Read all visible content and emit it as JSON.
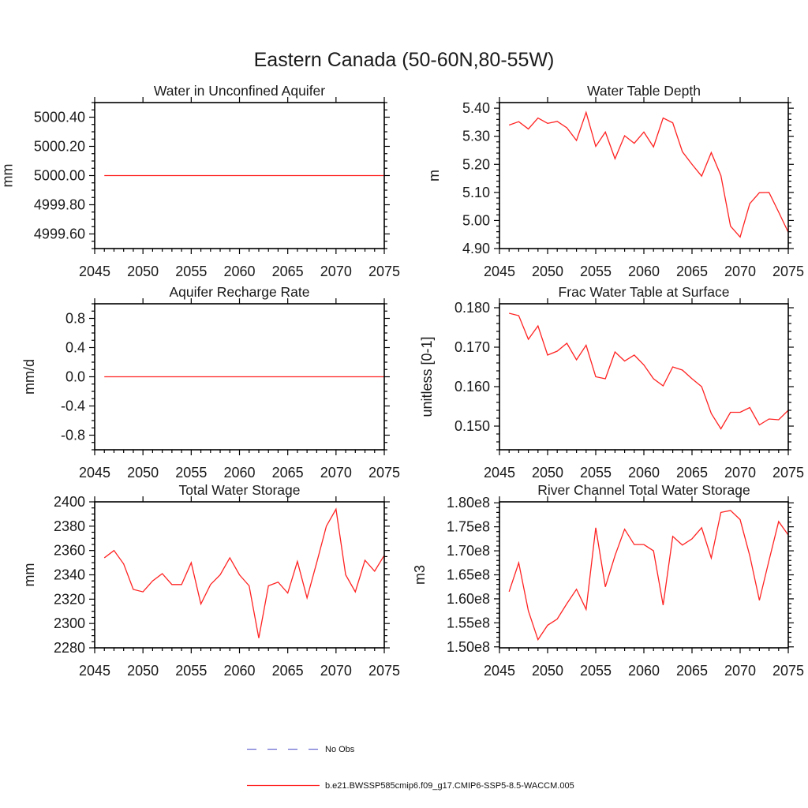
{
  "title": "Eastern Canada (50-60N,80-55W)",
  "colors": {
    "series_red": "#ff2222",
    "no_obs_blue": "#6e6ed2",
    "axis": "#000000",
    "background": "#ffffff"
  },
  "series_name": "b.e21.BWSSP585cmip6.f09_g17.CMIP6-SSP5-8.5-WACCM.005",
  "x_axis": {
    "lim": [
      2045,
      2075
    ],
    "tick_values": [
      2045,
      2050,
      2055,
      2060,
      2065,
      2070,
      2075
    ],
    "tick_labels": [
      "2045",
      "2050",
      "2055",
      "2060",
      "2065",
      "2070",
      "2075"
    ],
    "minor_step": 1
  },
  "legend": [
    {
      "label": "No Obs",
      "color": "#6e6ed2",
      "style": "dashed"
    },
    {
      "label": "b.e21.BWSSP585cmip6.f09_g17.CMIP6-SSP5-8.5-WACCM.005",
      "color": "#ff2222",
      "style": "solid"
    }
  ],
  "chart_data": [
    {
      "id": "water-in-unconfined-aquifer",
      "type": "line",
      "title": "Water in Unconfined Aquifer",
      "ylabel": "mm",
      "ylim": [
        4999.5,
        5000.5
      ],
      "yticks": {
        "values": [
          5000.4,
          5000.2,
          5000.0,
          4999.8,
          4999.6
        ],
        "labels": [
          "5000.40",
          "5000.20",
          "5000.00",
          "4999.80",
          "4999.60"
        ]
      },
      "y_minor_step": 0.05,
      "x_start": 2046,
      "series": [
        {
          "name": "b.e21.BWSSP585cmip6.f09_g17.CMIP6-SSP5-8.5-WACCM.005",
          "color": "#ff2222",
          "values": [
            5000,
            5000,
            5000,
            5000,
            5000,
            5000,
            5000,
            5000,
            5000,
            5000,
            5000,
            5000,
            5000,
            5000,
            5000,
            5000,
            5000,
            5000,
            5000,
            5000,
            5000,
            5000,
            5000,
            5000,
            5000,
            5000,
            5000,
            5000,
            5000,
            5000
          ]
        }
      ]
    },
    {
      "id": "water-table-depth",
      "type": "line",
      "title": "Water Table Depth",
      "ylabel": "m",
      "ylim": [
        4.9,
        5.42
      ],
      "yticks": {
        "values": [
          5.4,
          5.3,
          5.2,
          5.1,
          5.0,
          4.9
        ],
        "labels": [
          "5.40",
          "5.30",
          "5.20",
          "5.10",
          "5.00",
          "4.90"
        ]
      },
      "y_minor_step": 0.02,
      "x_start": 2046,
      "series": [
        {
          "name": "b.e21.BWSSP585cmip6.f09_g17.CMIP6-SSP5-8.5-WACCM.005",
          "color": "#ff2222",
          "values": [
            5.34,
            5.352,
            5.326,
            5.365,
            5.346,
            5.353,
            5.33,
            5.285,
            5.385,
            5.264,
            5.315,
            5.22,
            5.302,
            5.275,
            5.315,
            5.262,
            5.365,
            5.348,
            5.245,
            5.2,
            5.158,
            5.242,
            5.16,
            4.98,
            4.941,
            5.06,
            5.099,
            5.1,
            5.03,
            4.958
          ]
        }
      ]
    },
    {
      "id": "aquifer-recharge-rate",
      "type": "line",
      "title": "Aquifer Recharge Rate",
      "ylabel": "mm/d",
      "ylim": [
        -1.0,
        1.0
      ],
      "yticks": {
        "values": [
          0.8,
          0.4,
          0.0,
          -0.4,
          -0.8
        ],
        "labels": [
          "0.8",
          "0.4",
          "0.0",
          "-0.4",
          "-0.8"
        ]
      },
      "y_minor_step": 0.1,
      "x_start": 2046,
      "series": [
        {
          "name": "b.e21.BWSSP585cmip6.f09_g17.CMIP6-SSP5-8.5-WACCM.005",
          "color": "#ff2222",
          "values": [
            0,
            0,
            0,
            0,
            0,
            0,
            0,
            0,
            0,
            0,
            0,
            0,
            0,
            0,
            0,
            0,
            0,
            0,
            0,
            0,
            0,
            0,
            0,
            0,
            0,
            0,
            0,
            0,
            0,
            0
          ]
        }
      ]
    },
    {
      "id": "frac-water-table-at-surface",
      "type": "line",
      "title": "Frac Water Table at Surface",
      "ylabel": "unitless [0-1]",
      "ylim": [
        0.144,
        0.181
      ],
      "yticks": {
        "values": [
          0.18,
          0.17,
          0.16,
          0.15
        ],
        "labels": [
          "0.180",
          "0.170",
          "0.160",
          "0.150"
        ]
      },
      "y_minor_step": 0.002,
      "x_start": 2046,
      "series": [
        {
          "name": "b.e21.BWSSP585cmip6.f09_g17.CMIP6-SSP5-8.5-WACCM.005",
          "color": "#ff2222",
          "values": [
            0.1786,
            0.178,
            0.172,
            0.1754,
            0.168,
            0.169,
            0.171,
            0.1668,
            0.1705,
            0.1625,
            0.162,
            0.1688,
            0.1665,
            0.168,
            0.1655,
            0.162,
            0.1602,
            0.165,
            0.1642,
            0.162,
            0.16,
            0.1532,
            0.1493,
            0.1535,
            0.1535,
            0.1547,
            0.1503,
            0.1518,
            0.1516,
            0.154
          ]
        }
      ]
    },
    {
      "id": "total-water-storage",
      "type": "line",
      "title": "Total Water Storage",
      "ylabel": "mm",
      "ylim": [
        2280,
        2400
      ],
      "yticks": {
        "values": [
          2400,
          2380,
          2360,
          2340,
          2320,
          2300,
          2280
        ],
        "labels": [
          "2400",
          "2380",
          "2360",
          "2340",
          "2320",
          "2300",
          "2280"
        ]
      },
      "y_minor_step": 5,
      "x_start": 2046,
      "series": [
        {
          "name": "b.e21.BWSSP585cmip6.f09_g17.CMIP6-SSP5-8.5-WACCM.005",
          "color": "#ff2222",
          "values": [
            2354,
            2360,
            2349,
            2328,
            2326,
            2335,
            2341,
            2332,
            2332,
            2350,
            2316,
            2332,
            2340,
            2354,
            2340,
            2331,
            2288,
            2331,
            2334,
            2325,
            2351,
            2321,
            2350,
            2380,
            2394,
            2340,
            2326,
            2352,
            2343,
            2356
          ]
        }
      ]
    },
    {
      "id": "river-channel-total-water-storage",
      "type": "line",
      "title": "River Channel Total Water Storage",
      "ylabel": "m3",
      "ylim": [
        149800000.0,
        180200000.0
      ],
      "yticks": {
        "values": [
          180000000.0,
          175000000.0,
          170000000.0,
          165000000.0,
          160000000.0,
          155000000.0,
          150000000.0
        ],
        "labels": [
          "1.80e8",
          "1.75e8",
          "1.70e8",
          "1.65e8",
          "1.60e8",
          "1.55e8",
          "1.50e8"
        ]
      },
      "y_minor_step": 1000000.0,
      "x_start": 2046,
      "series": [
        {
          "name": "b.e21.BWSSP585cmip6.f09_g17.CMIP6-SSP5-8.5-WACCM.005",
          "color": "#ff2222",
          "values": [
            161500000.0,
            167500000.0,
            157500000.0,
            151500000.0,
            154500000.0,
            155800000.0,
            159000000.0,
            162000000.0,
            157800000.0,
            174800000.0,
            162500000.0,
            169000000.0,
            174500000.0,
            171300000.0,
            171300000.0,
            170000000.0,
            158700000.0,
            173000000.0,
            171200000.0,
            172500000.0,
            174800000.0,
            168500000.0,
            178000000.0,
            178400000.0,
            176500000.0,
            169000000.0,
            159700000.0,
            168000000.0,
            176100000.0,
            173300000.0
          ]
        }
      ]
    }
  ]
}
